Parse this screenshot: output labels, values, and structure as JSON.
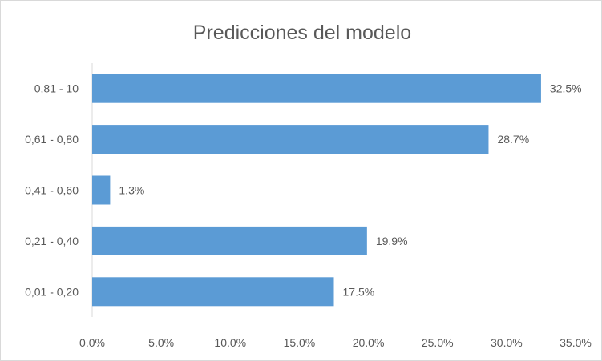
{
  "chart_data": {
    "type": "bar",
    "orientation": "horizontal",
    "title": "Predicciones del modelo",
    "xlabel": "",
    "ylabel": "",
    "categories": [
      "0,81 - 10",
      "0,61 - 0,80",
      "0,41 - 0,60",
      "0,21 - 0,40",
      "0,01 - 0,20"
    ],
    "values": [
      32.5,
      28.7,
      1.3,
      19.9,
      17.5
    ],
    "data_labels": [
      "32.5%",
      "28.7%",
      "1.3%",
      "19.9%",
      "17.5%"
    ],
    "xlim": [
      0,
      35
    ],
    "x_ticks": [
      0,
      5,
      10,
      15,
      20,
      25,
      30,
      35
    ],
    "x_tick_labels": [
      "0.0%",
      "5.0%",
      "10.0%",
      "15.0%",
      "20.0%",
      "25.0%",
      "30.0%",
      "35.0%"
    ],
    "grid": false,
    "legend": "none",
    "bar_color": "#5b9bd5"
  }
}
